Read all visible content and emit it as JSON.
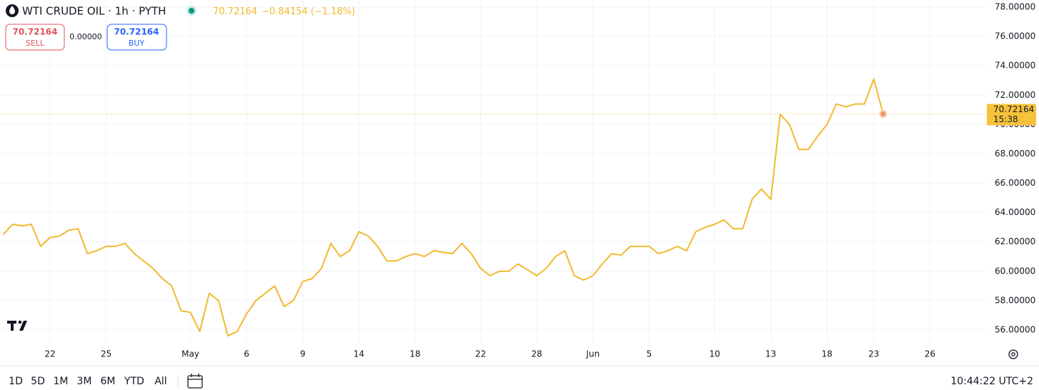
{
  "header": {
    "title": "WTI CRUDE OIL · 1h · PYTH",
    "price": "70.72164",
    "change": "−0.84154",
    "change_pct": "(−1.18%)"
  },
  "trade": {
    "sell_price": "70.72164",
    "sell": "SELL",
    "spread": "0.00000",
    "buy_price": "70.72164",
    "buy": "BUY"
  },
  "chart_data": {
    "type": "line",
    "categories": [
      null,
      null,
      null,
      null,
      null,
      "22",
      null,
      null,
      null,
      null,
      null,
      "25",
      null,
      null,
      null,
      null,
      null,
      null,
      null,
      null,
      "May",
      null,
      null,
      null,
      null,
      null,
      "6",
      null,
      null,
      null,
      null,
      null,
      "9",
      null,
      null,
      null,
      null,
      null,
      "14",
      null,
      null,
      null,
      null,
      null,
      "18",
      null,
      null,
      null,
      null,
      null,
      null,
      "22",
      null,
      null,
      null,
      null,
      null,
      "28",
      null,
      null,
      null,
      null,
      null,
      "Jun",
      null,
      null,
      null,
      null,
      null,
      "5",
      null,
      null,
      null,
      null,
      null,
      null,
      "10",
      null,
      null,
      null,
      null,
      null,
      "13",
      null,
      null,
      null,
      null,
      null,
      "18",
      null,
      null,
      null,
      null,
      "23",
      null,
      null,
      null,
      null,
      null,
      "26"
    ],
    "values": [
      62.5,
      63.2,
      63.1,
      63.2,
      61.7,
      62.3,
      62.4,
      62.8,
      62.9,
      61.2,
      61.4,
      61.7,
      61.7,
      61.9,
      61.2,
      60.7,
      60.2,
      59.5,
      59.0,
      57.3,
      57.2,
      55.9,
      58.5,
      58.0,
      55.6,
      55.9,
      57.1,
      58.0,
      58.5,
      59.0,
      57.6,
      58.0,
      59.3,
      59.5,
      60.2,
      61.9,
      61.0,
      61.4,
      62.7,
      62.4,
      61.7,
      60.7,
      60.7,
      61.0,
      61.2,
      61.0,
      61.4,
      61.3,
      61.2,
      61.9,
      61.2,
      60.2,
      59.7,
      60.0,
      60.0,
      60.5,
      60.1,
      59.7,
      60.2,
      61.0,
      61.4,
      59.7,
      59.4,
      59.7,
      60.5,
      61.2,
      61.1,
      61.7,
      61.7,
      61.7,
      61.2,
      61.4,
      61.7,
      61.4,
      62.7,
      63.0,
      63.2,
      63.5,
      62.9,
      62.9,
      64.9,
      65.6,
      64.9,
      70.7,
      70.0,
      68.3,
      68.3,
      69.2,
      70.0,
      71.4,
      71.2,
      71.4,
      71.4,
      73.1,
      70.72164,
      null,
      null,
      null,
      null,
      null
    ],
    "color": "#f2b92f",
    "ylim": [
      55.12,
      78.49
    ],
    "yticks": [
      {
        "value": 56,
        "label": "56.00000"
      },
      {
        "value": 58,
        "label": "58.00000"
      },
      {
        "value": 60,
        "label": "60.00000"
      },
      {
        "value": 62,
        "label": "62.00000"
      },
      {
        "value": 64,
        "label": "64.00000"
      },
      {
        "value": 66,
        "label": "66.00000"
      },
      {
        "value": 68,
        "label": "68.00000"
      },
      {
        "value": 70,
        "label": "70.00000"
      },
      {
        "value": 72,
        "label": "72.00000"
      },
      {
        "value": 74,
        "label": "74.00000"
      },
      {
        "value": 76,
        "label": "76.00000"
      },
      {
        "value": 78,
        "label": "78.00000"
      }
    ],
    "grid": true,
    "last_price": {
      "value": 70.72164,
      "label": "70.72164"
    },
    "countdown": "15:38"
  },
  "footer": {
    "ranges": [
      "1D",
      "5D",
      "1M",
      "3M",
      "6M",
      "YTD",
      "All"
    ],
    "time": "10:44:22 UTC+2"
  }
}
